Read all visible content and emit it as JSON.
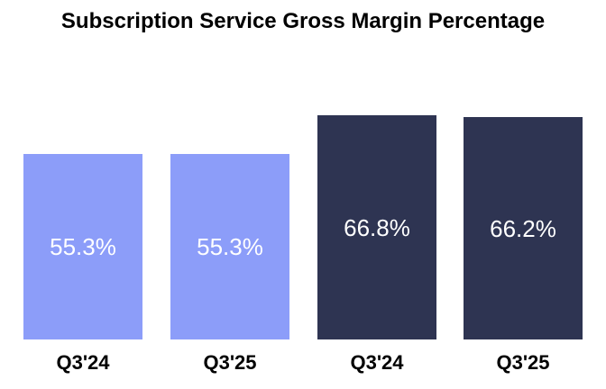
{
  "chart_data": {
    "type": "bar",
    "title": "Subscription Service Gross Margin Percentage",
    "categories": [
      "Q3'24",
      "Q3'25",
      "Q3'24",
      "Q3'25"
    ],
    "values": [
      55.3,
      55.3,
      66.8,
      66.2
    ],
    "value_labels": [
      "55.3%",
      "55.3%",
      "66.8%",
      "66.2%"
    ],
    "colors": [
      "#8C9DF9",
      "#8C9DF9",
      "#2E3452",
      "#2E3452"
    ],
    "value_label_color": "#FFFFFF",
    "text_color": "#000000",
    "background_color": "#FFFFFF",
    "xlabel": "",
    "ylabel": "",
    "ylim": [
      0,
      70
    ],
    "grid": false,
    "legend": null,
    "axes_visible": false,
    "value_label_position": "center-inside"
  }
}
